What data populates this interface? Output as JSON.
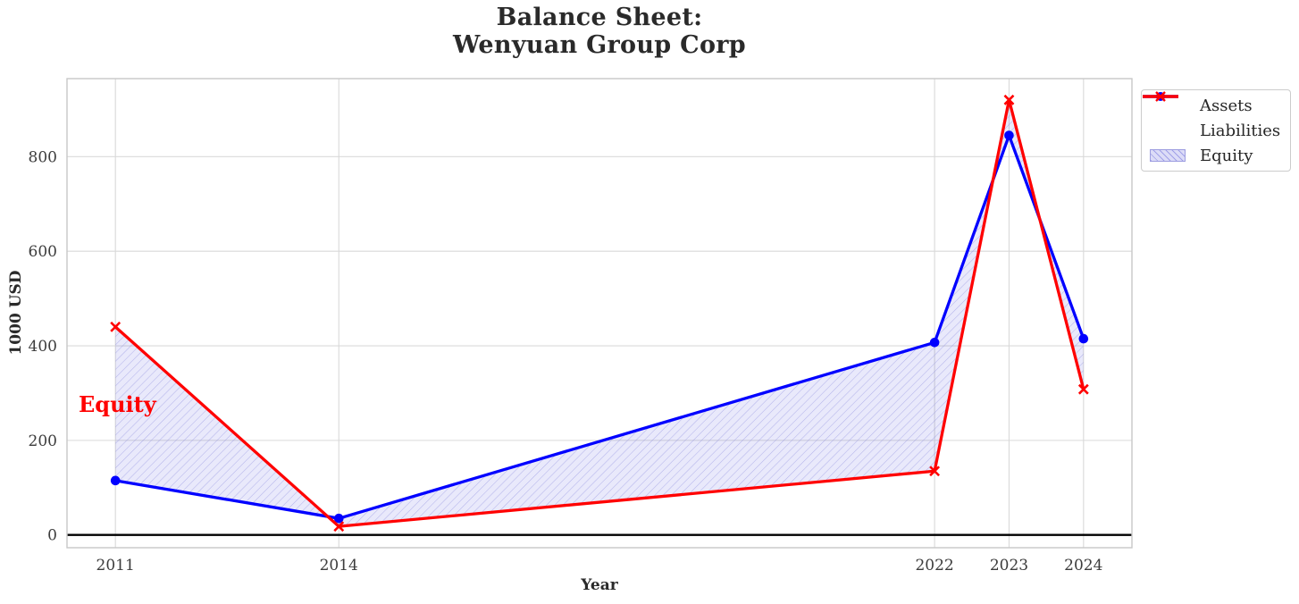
{
  "title": "Balance Sheet:\nWenyuan Group Corp",
  "axes": {
    "xlabel": "Year",
    "ylabel": "1000 USD"
  },
  "annotation": {
    "text": "Equity",
    "color": "#ff0000"
  },
  "legend": {
    "position": "outside-upper-right",
    "items": [
      {
        "label": "Assets"
      },
      {
        "label": "Liabilities"
      },
      {
        "label": "Equity"
      }
    ]
  },
  "colors": {
    "assets": "#0000ff",
    "liabilities": "#ff0000",
    "equity_fill": "#4646e0",
    "equity_hatch": "#8888dd",
    "grid": "#d9d9d9",
    "spine": "#c8c8c8",
    "tick_text": "#3c3c3c",
    "zero_line": "#000000"
  },
  "chart_data": {
    "type": "line",
    "title": "Balance Sheet: Wenyuan Group Corp",
    "xlabel": "Year",
    "ylabel": "1000 USD",
    "x": [
      2011,
      2014,
      2022,
      2023,
      2024
    ],
    "series": [
      {
        "name": "Assets",
        "color": "#0000ff",
        "marker": "circle",
        "values": [
          115,
          35,
          407,
          845,
          415
        ]
      },
      {
        "name": "Liabilities",
        "color": "#ff0000",
        "marker": "x",
        "values": [
          440,
          18,
          135,
          920,
          308
        ]
      }
    ],
    "fill_between": {
      "name": "Equity",
      "between": [
        "Assets",
        "Liabilities"
      ],
      "hatch": "//"
    },
    "annotation": {
      "text": "Equity",
      "x": 2010.5,
      "y": 277
    },
    "xticks": [
      "2011",
      "2014",
      "2022",
      "2023",
      "2024"
    ],
    "xtick_years": [
      2011,
      2014,
      2022,
      2023,
      2024
    ],
    "yticks": [
      0,
      200,
      400,
      600,
      800
    ],
    "xlim": [
      2010.35,
      2024.65
    ],
    "ylim": [
      -27,
      965
    ],
    "grid": true,
    "zero_line": 0,
    "legend_position": "outside-upper-right"
  }
}
